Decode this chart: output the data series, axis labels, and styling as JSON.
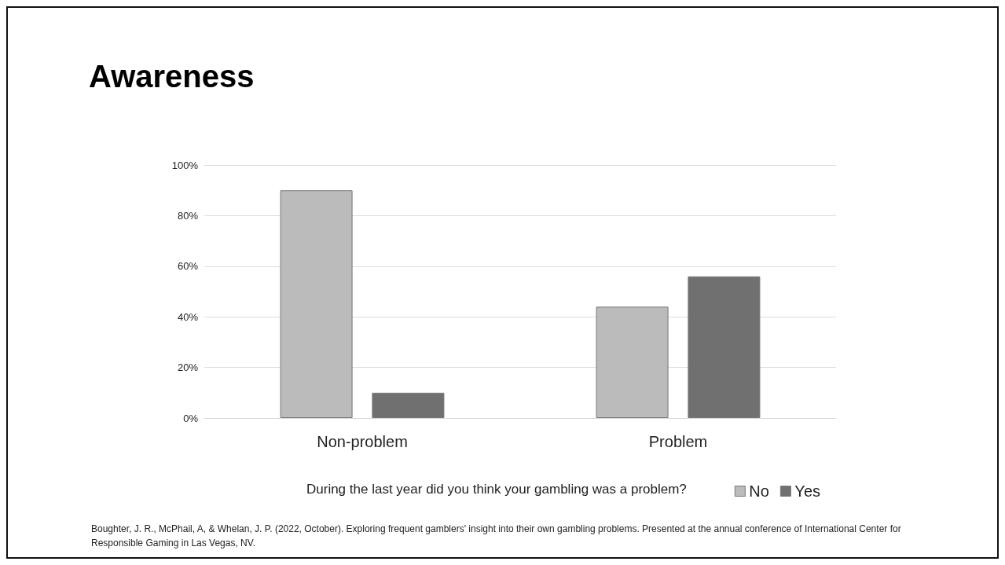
{
  "chart_data": {
    "type": "bar",
    "title": "Awareness",
    "xlabel": "During the last year did you think your gambling was a problem?",
    "categories": [
      "Non-problem",
      "Problem"
    ],
    "series": [
      {
        "name": "No",
        "color": "#bbbbbb",
        "values": [
          90,
          44
        ]
      },
      {
        "name": "Yes",
        "color": "#707070",
        "values": [
          10,
          56
        ]
      }
    ],
    "ylim": [
      0,
      100
    ],
    "yticks": [
      {
        "value": 0,
        "label": "0%"
      },
      {
        "value": 20,
        "label": "20%"
      },
      {
        "value": 40,
        "label": "40%"
      },
      {
        "value": 60,
        "label": "60%"
      },
      {
        "value": 80,
        "label": "80%"
      },
      {
        "value": 100,
        "label": "100%"
      }
    ],
    "grid": "y",
    "legend": "bottom right",
    "annotations": [
      "Boughter, J. R., McPhail, A, & Whelan, J. P. (2022, October). Exploring frequent gamblers' insight into their own gambling problems. Presented at the annual conference of International Center for Responsible Gaming in Las Vegas, NV."
    ]
  }
}
